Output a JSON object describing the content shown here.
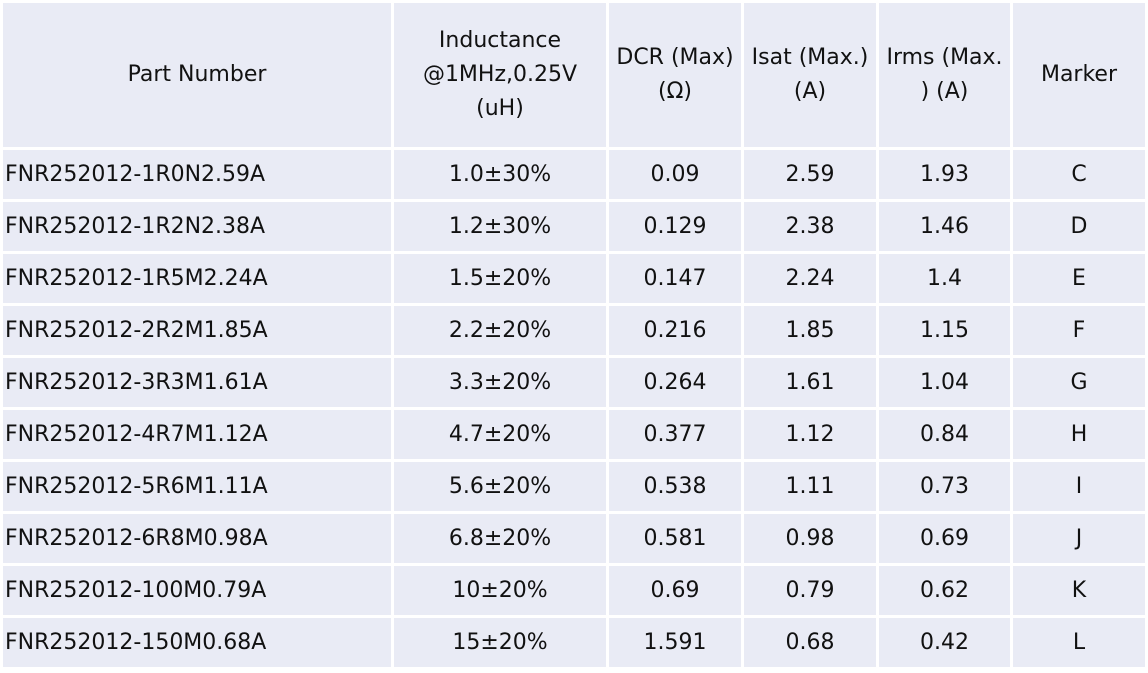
{
  "table": {
    "headers": [
      "Part Number",
      "Inductance\n@1MHz,0.25V\n(uH)",
      "DCR (Max)\n(Ω)",
      "Isat (Max.)\n(A)",
      "Irms (Max.\n) (A)",
      "Marker"
    ],
    "rows": [
      [
        "FNR252012-1R0N2.59A",
        "1.0±30%",
        "0.09",
        "2.59",
        "1.93",
        "C"
      ],
      [
        "FNR252012-1R2N2.38A",
        "1.2±30%",
        "0.129",
        "2.38",
        "1.46",
        "D"
      ],
      [
        "FNR252012-1R5M2.24A",
        "1.5±20%",
        "0.147",
        "2.24",
        "1.4",
        "E"
      ],
      [
        "FNR252012-2R2M1.85A",
        "2.2±20%",
        "0.216",
        "1.85",
        "1.15",
        "F"
      ],
      [
        "FNR252012-3R3M1.61A",
        "3.3±20%",
        "0.264",
        "1.61",
        "1.04",
        "G"
      ],
      [
        "FNR252012-4R7M1.12A",
        "4.7±20%",
        "0.377",
        "1.12",
        "0.84",
        "H"
      ],
      [
        "FNR252012-5R6M1.11A",
        "5.6±20%",
        "0.538",
        "1.11",
        "0.73",
        "I"
      ],
      [
        "FNR252012-6R8M0.98A",
        "6.8±20%",
        "0.581",
        "0.98",
        "0.69",
        "J"
      ],
      [
        "FNR252012-100M0.79A",
        "10±20%",
        "0.69",
        "0.79",
        "0.62",
        "K"
      ],
      [
        "FNR252012-150M0.68A",
        "15±20%",
        "1.591",
        "0.68",
        "0.42",
        "L"
      ]
    ]
  },
  "colors": {
    "cell_background": "#e9ebf5",
    "grid_lines": "#ffffff",
    "text": "#111111"
  }
}
